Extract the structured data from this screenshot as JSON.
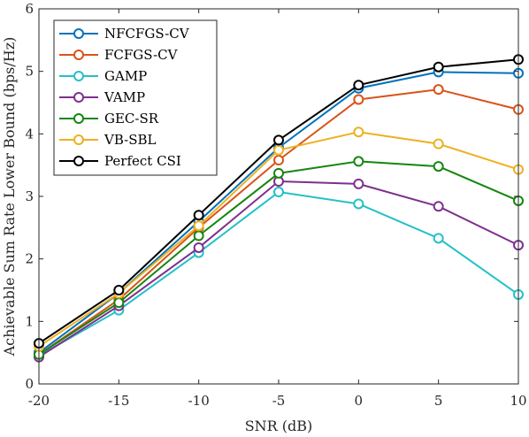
{
  "chart_data": {
    "type": "line",
    "title": "",
    "xlabel": "SNR (dB)",
    "ylabel": "Achievable Sum Rate Lower Bound (bps/Hz)",
    "x": [
      -20,
      -15,
      -10,
      -5,
      0,
      5,
      10
    ],
    "x_tick_labels": [
      "-20",
      "-15",
      "-10",
      "-5",
      "0",
      "5",
      "10"
    ],
    "y_tick_labels": [
      "0",
      "1",
      "2",
      "3",
      "4",
      "5",
      "6"
    ],
    "xlim": [
      -20,
      10
    ],
    "ylim": [
      0,
      6
    ],
    "grid": false,
    "box": true,
    "legend_position": "top-left",
    "marker": "open-circle",
    "series": [
      {
        "name": "NFCFGS-CV",
        "color": "#0072BD",
        "values": [
          0.5,
          1.45,
          2.6,
          3.78,
          4.73,
          4.99,
          4.97
        ]
      },
      {
        "name": "FCFGS-CV",
        "color": "#D95319",
        "values": [
          0.47,
          1.35,
          2.5,
          3.58,
          4.55,
          4.71,
          4.39
        ]
      },
      {
        "name": "GAMP",
        "color": "#23C1C7",
        "values": [
          0.45,
          1.18,
          2.1,
          3.07,
          2.88,
          2.33,
          1.43
        ]
      },
      {
        "name": "VAMP",
        "color": "#7E2F8E",
        "values": [
          0.43,
          1.25,
          2.18,
          3.24,
          3.2,
          2.84,
          2.22
        ]
      },
      {
        "name": "GEC-SR",
        "color": "#15860F",
        "values": [
          0.47,
          1.3,
          2.37,
          3.37,
          3.56,
          3.48,
          2.93
        ]
      },
      {
        "name": "VB-SBL",
        "color": "#EDB120",
        "values": [
          0.6,
          1.45,
          2.53,
          3.74,
          4.03,
          3.84,
          3.43
        ]
      },
      {
        "name": "Perfect CSI",
        "color": "#000000",
        "values": [
          0.65,
          1.5,
          2.7,
          3.9,
          4.78,
          5.07,
          5.19
        ]
      }
    ]
  }
}
